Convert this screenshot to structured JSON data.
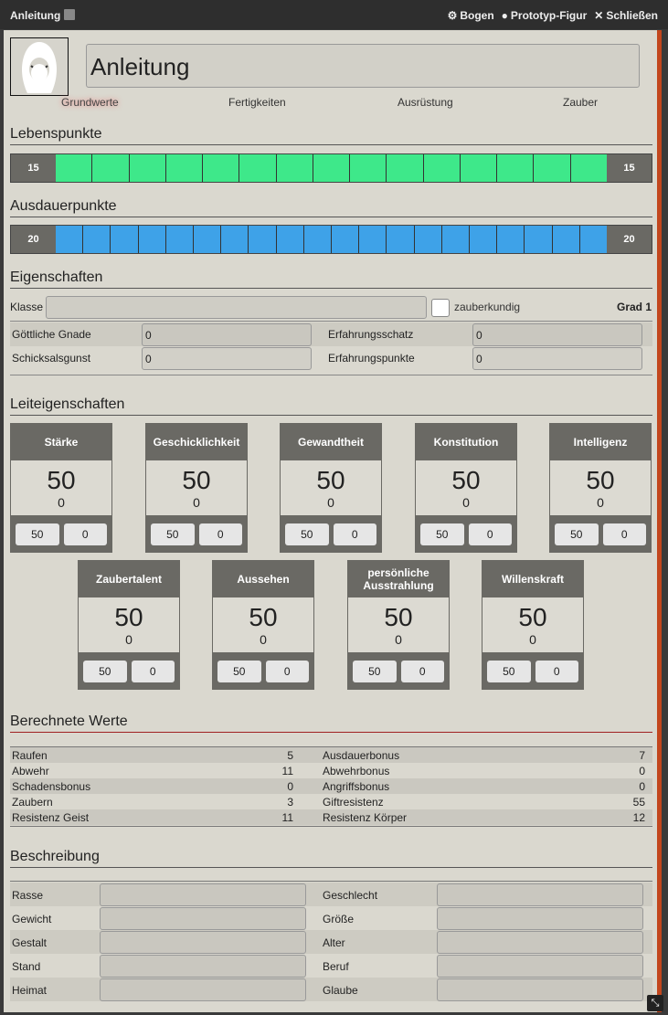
{
  "window": {
    "title": "Anleitung",
    "actions": [
      {
        "icon": "gear-icon",
        "label": "Bogen"
      },
      {
        "icon": "user-circle-icon",
        "label": "Prototyp-Figur"
      },
      {
        "icon": "close-icon",
        "label": "Schließen"
      }
    ]
  },
  "character": {
    "name": "Anleitung"
  },
  "tabs": [
    "Grundwerte",
    "Fertigkeiten",
    "Ausrüstung",
    "Zauber"
  ],
  "active_tab": "Grundwerte",
  "lebenspunkte": {
    "title": "Lebenspunkte",
    "current": "15",
    "max": "15",
    "cells": 15,
    "color": "#3ee88a"
  },
  "ausdauer": {
    "title": "Ausdauerpunkte",
    "current": "20",
    "max": "20",
    "cells": 20,
    "color": "#3ea2e8"
  },
  "eigenschaften": {
    "title": "Eigenschaften",
    "klasse_label": "Klasse",
    "klasse_value": "",
    "zauberkundig_label": "zauberkundig",
    "zauberkundig": false,
    "grad": "Grad 1",
    "rows": [
      [
        {
          "label": "Göttliche Gnade",
          "value": "0"
        },
        {
          "label": "Erfahrungsschatz",
          "value": "0"
        }
      ],
      [
        {
          "label": "Schicksalsgunst",
          "value": "0"
        },
        {
          "label": "Erfahrungspunkte",
          "value": "0"
        }
      ]
    ]
  },
  "leiteigenschaften": {
    "title": "Leiteigenschaften",
    "items": [
      {
        "name": "Stärke",
        "value": "50",
        "mod": "0",
        "base": "50",
        "bonus": "0"
      },
      {
        "name": "Geschicklichkeit",
        "value": "50",
        "mod": "0",
        "base": "50",
        "bonus": "0"
      },
      {
        "name": "Gewandtheit",
        "value": "50",
        "mod": "0",
        "base": "50",
        "bonus": "0"
      },
      {
        "name": "Konstitution",
        "value": "50",
        "mod": "0",
        "base": "50",
        "bonus": "0"
      },
      {
        "name": "Intelligenz",
        "value": "50",
        "mod": "0",
        "base": "50",
        "bonus": "0"
      },
      {
        "name": "Zaubertalent",
        "value": "50",
        "mod": "0",
        "base": "50",
        "bonus": "0"
      },
      {
        "name": "Aussehen",
        "value": "50",
        "mod": "0",
        "base": "50",
        "bonus": "0"
      },
      {
        "name": "persönliche Ausstrahlung",
        "value": "50",
        "mod": "0",
        "base": "50",
        "bonus": "0"
      },
      {
        "name": "Willenskraft",
        "value": "50",
        "mod": "0",
        "base": "50",
        "bonus": "0"
      }
    ]
  },
  "berechnete": {
    "title": "Berechnete Werte",
    "rows": [
      [
        {
          "label": "Raufen",
          "value": "5"
        },
        {
          "label": "Ausdauerbonus",
          "value": "7"
        }
      ],
      [
        {
          "label": "Abwehr",
          "value": "11"
        },
        {
          "label": "Abwehrbonus",
          "value": "0"
        }
      ],
      [
        {
          "label": "Schadensbonus",
          "value": "0"
        },
        {
          "label": "Angriffsbonus",
          "value": "0"
        }
      ],
      [
        {
          "label": "Zaubern",
          "value": "3"
        },
        {
          "label": "Giftresistenz",
          "value": "55"
        }
      ],
      [
        {
          "label": "Resistenz Geist",
          "value": "11"
        },
        {
          "label": "Resistenz Körper",
          "value": "12"
        }
      ]
    ]
  },
  "beschreibung": {
    "title": "Beschreibung",
    "rows": [
      [
        {
          "label": "Rasse",
          "value": ""
        },
        {
          "label": "Geschlecht",
          "value": ""
        }
      ],
      [
        {
          "label": "Gewicht",
          "value": ""
        },
        {
          "label": "Größe",
          "value": ""
        }
      ],
      [
        {
          "label": "Gestalt",
          "value": ""
        },
        {
          "label": "Alter",
          "value": ""
        }
      ],
      [
        {
          "label": "Stand",
          "value": ""
        },
        {
          "label": "Beruf",
          "value": ""
        }
      ],
      [
        {
          "label": "Heimat",
          "value": ""
        },
        {
          "label": "Glaube",
          "value": ""
        }
      ]
    ]
  }
}
